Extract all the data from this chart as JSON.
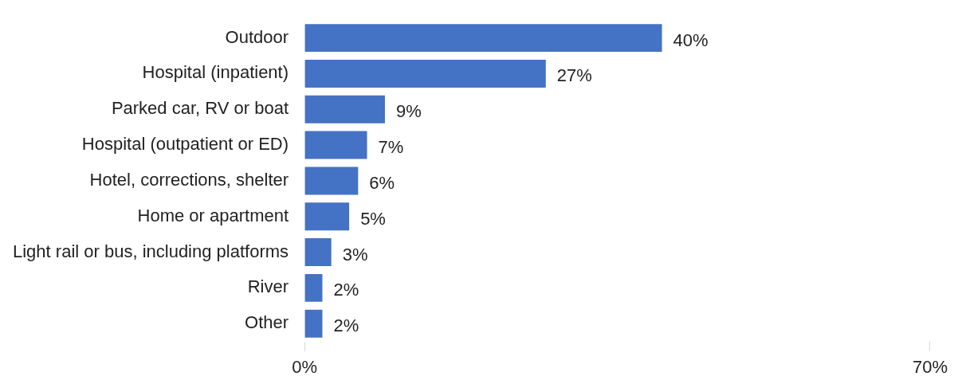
{
  "chart_data": {
    "type": "bar",
    "orientation": "horizontal",
    "categories": [
      "Outdoor",
      "Hospital (inpatient)",
      "Parked car, RV or boat",
      "Hospital (outpatient or ED)",
      "Hotel, corrections, shelter",
      "Home or apartment",
      "Light rail or bus, including platforms",
      "River",
      "Other"
    ],
    "values": [
      40,
      27,
      9,
      7,
      6,
      5,
      3,
      2,
      2
    ],
    "value_labels": [
      "40%",
      "27%",
      "9%",
      "7%",
      "6%",
      "5%",
      "3%",
      "2%",
      "2%"
    ],
    "color": "#4472c4",
    "xlim": [
      0,
      70
    ],
    "xticks": [
      {
        "value": 0,
        "label": "0%"
      },
      {
        "value": 70,
        "label": "70%"
      }
    ],
    "grid": false,
    "legend": false
  }
}
